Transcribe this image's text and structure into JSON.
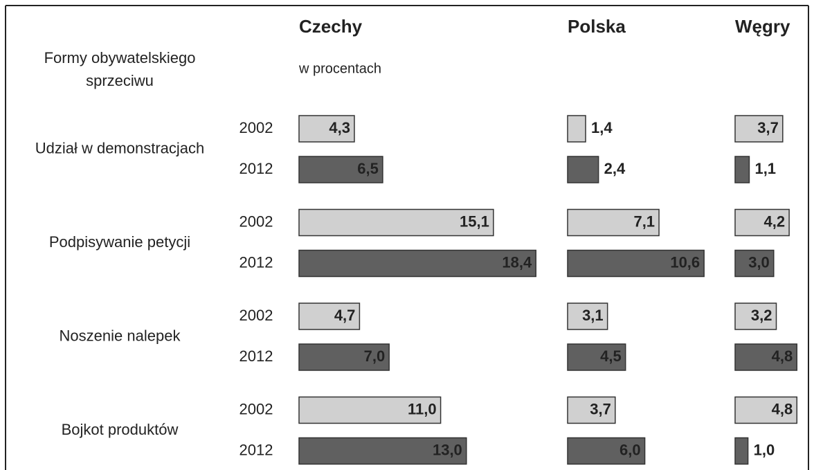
{
  "chart_data": {
    "type": "bar",
    "row_header": [
      "Formy obywatelskiego",
      "sprzeciwu"
    ],
    "subtitle": "w procentach",
    "categories": [
      "Udział w demonstracjach",
      "Podpisywanie petycji",
      "Noszenie nalepek",
      "Bojkot produktów"
    ],
    "series": [
      {
        "name": "2002",
        "color": "#d0d0d0"
      },
      {
        "name": "2012",
        "color": "#606060"
      }
    ],
    "panels": [
      {
        "title": "Czechy",
        "values": [
          [
            4.3,
            15.1,
            4.7,
            11.0
          ],
          [
            6.5,
            18.4,
            7.0,
            13.0
          ]
        ],
        "value_labels": [
          [
            "4,3",
            "15,1",
            "4,7",
            "11,0"
          ],
          [
            "6,5",
            "18,4",
            "7,0",
            "13,0"
          ]
        ]
      },
      {
        "title": "Polska",
        "values": [
          [
            1.4,
            7.1,
            3.1,
            3.7
          ],
          [
            2.4,
            10.6,
            4.5,
            6.0
          ]
        ],
        "value_labels": [
          [
            "1,4",
            "7,1",
            "3,1",
            "3,7"
          ],
          [
            "2,4",
            "10,6",
            "4,5",
            "6,0"
          ]
        ]
      },
      {
        "title": "Węgry",
        "values": [
          [
            3.7,
            4.2,
            3.2,
            4.8
          ],
          [
            1.1,
            3.0,
            4.8,
            1.0
          ]
        ],
        "value_labels": [
          [
            "3,7",
            "4,2",
            "3,2",
            "4,8"
          ],
          [
            "1,1",
            "3,0",
            "4,8",
            "1,0"
          ]
        ]
      }
    ]
  }
}
